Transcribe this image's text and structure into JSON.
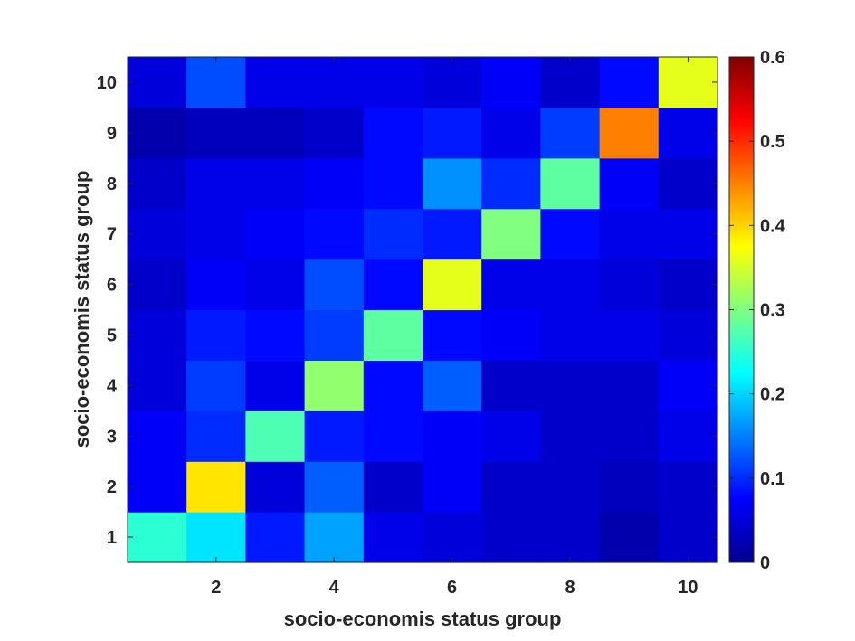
{
  "chart_data": {
    "type": "heatmap",
    "title": "",
    "xlabel": "socio-economis status group",
    "ylabel": "socio-economis status group",
    "x_categories": [
      1,
      2,
      3,
      4,
      5,
      6,
      7,
      8,
      9,
      10
    ],
    "y_categories": [
      1,
      2,
      3,
      4,
      5,
      6,
      7,
      8,
      9,
      10
    ],
    "x_tick_labels": [
      "2",
      "4",
      "6",
      "8",
      "10"
    ],
    "x_tick_values": [
      2,
      4,
      6,
      8,
      10
    ],
    "y_tick_labels": [
      "1",
      "2",
      "3",
      "4",
      "5",
      "6",
      "7",
      "8",
      "9",
      "10"
    ],
    "y_tick_values": [
      1,
      2,
      3,
      4,
      5,
      6,
      7,
      8,
      9,
      10
    ],
    "colorbar": {
      "range": [
        0,
        0.6
      ],
      "colormap": "jet",
      "tick_values": [
        0,
        0.1,
        0.2,
        0.3,
        0.4,
        0.5,
        0.6
      ],
      "tick_labels": [
        "0",
        "0.1",
        "0.2",
        "0.3",
        "0.4",
        "0.5",
        "0.6"
      ]
    },
    "values": [
      [
        0.25,
        0.21,
        0.09,
        0.17,
        0.06,
        0.05,
        0.04,
        0.04,
        0.02,
        0.04
      ],
      [
        0.07,
        0.39,
        0.05,
        0.13,
        0.04,
        0.07,
        0.04,
        0.04,
        0.03,
        0.04
      ],
      [
        0.07,
        0.1,
        0.27,
        0.09,
        0.08,
        0.07,
        0.06,
        0.04,
        0.04,
        0.06
      ],
      [
        0.05,
        0.11,
        0.06,
        0.31,
        0.08,
        0.13,
        0.04,
        0.04,
        0.04,
        0.07
      ],
      [
        0.05,
        0.09,
        0.08,
        0.11,
        0.28,
        0.08,
        0.07,
        0.06,
        0.06,
        0.05
      ],
      [
        0.04,
        0.07,
        0.06,
        0.12,
        0.08,
        0.36,
        0.06,
        0.06,
        0.05,
        0.04
      ],
      [
        0.05,
        0.06,
        0.07,
        0.08,
        0.1,
        0.09,
        0.3,
        0.08,
        0.06,
        0.06
      ],
      [
        0.04,
        0.06,
        0.06,
        0.07,
        0.08,
        0.16,
        0.1,
        0.28,
        0.07,
        0.04
      ],
      [
        0.02,
        0.03,
        0.03,
        0.04,
        0.08,
        0.09,
        0.06,
        0.11,
        0.45,
        0.06
      ],
      [
        0.05,
        0.12,
        0.06,
        0.06,
        0.06,
        0.05,
        0.07,
        0.04,
        0.08,
        0.36
      ]
    ]
  }
}
